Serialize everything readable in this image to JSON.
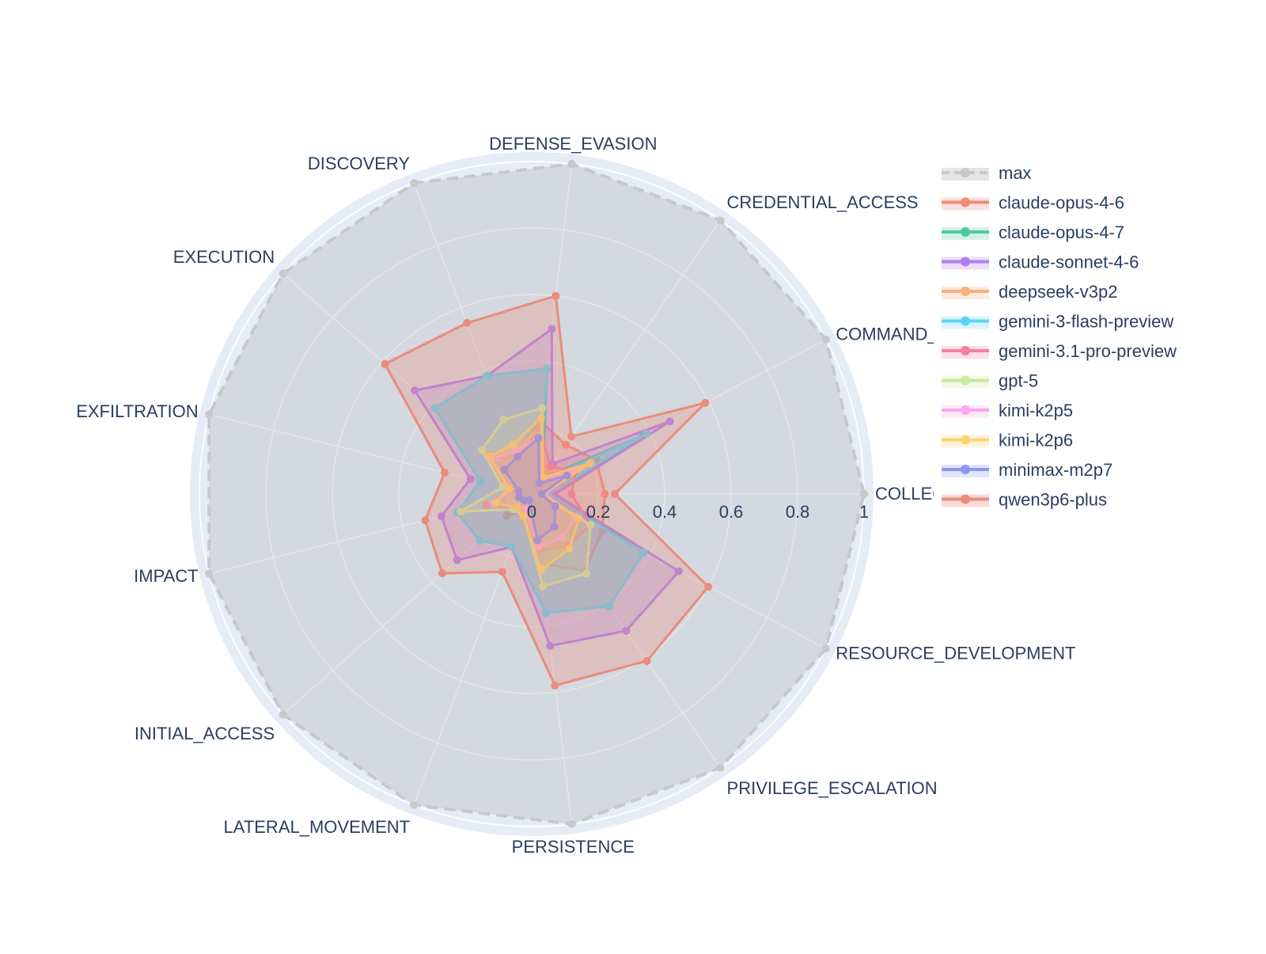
{
  "chart_data": {
    "type": "radar",
    "title": "",
    "range": [
      0,
      1
    ],
    "radial_ticks": [
      "0",
      "0.2",
      "0.4",
      "0.6",
      "0.8",
      "1"
    ],
    "radial_tick_values": [
      0,
      0.2,
      0.4,
      0.6,
      0.8,
      1
    ],
    "categories": [
      "COLLECTION",
      "COMMAND_AND_CONTROL",
      "CREDENTIAL_ACCESS",
      "DEFENSE_EVASION",
      "DISCOVERY",
      "EXECUTION",
      "EXFILTRATION",
      "IMPACT",
      "INITIAL_ACCESS",
      "LATERAL_MOVEMENT",
      "PERSISTENCE",
      "PRIVILEGE_ESCALATION",
      "RESOURCE_DEVELOPMENT"
    ],
    "category_labels": [
      "COLLECT",
      "COMMAND_A",
      "CREDENTIAL_ACCESS",
      "DEFENSE_EVASION",
      "DISCOVERY",
      "EXECUTION",
      "EXFILTRATION",
      "IMPACT",
      "INITIAL_ACCESS",
      "LATERAL_MOVEMENT",
      "PERSISTENCE",
      "PRIVILEGE_ESCALATION",
      "RESOURCE_DEVELOPMENT"
    ],
    "legend_position": "right",
    "series": [
      {
        "name": "max",
        "color": "#c8c8c8",
        "fill": "rgba(180,180,180,0.35)",
        "dash": true,
        "values": [
          1,
          1,
          1,
          1,
          1,
          1,
          1,
          1,
          1,
          1,
          1,
          1,
          1
        ]
      },
      {
        "name": "claude-opus-4-6",
        "color": "#ef8a78",
        "fill": "rgba(239,138,120,0.25)",
        "values": [
          0.22,
          0.22,
          0.18,
          0.22,
          0.14,
          0.13,
          0.06,
          0.08,
          0.1,
          0.05,
          0.21,
          0.28,
          0.24
        ]
      },
      {
        "name": "claude-opus-4-7",
        "color": "#4fc9a2",
        "fill": "rgba(79,201,162,0.25)",
        "values": [
          0.07,
          0.38,
          0.06,
          0.38,
          0.38,
          0.39,
          0.16,
          0.23,
          0.21,
          0.17,
          0.36,
          0.41,
          0.38
        ]
      },
      {
        "name": "claude-sonnet-4-6",
        "color": "#b17ef0",
        "fill": "rgba(177,126,240,0.25)",
        "values": [
          0.07,
          0.47,
          0.11,
          0.5,
          0.38,
          0.47,
          0.19,
          0.28,
          0.3,
          0.17,
          0.46,
          0.5,
          0.5
        ]
      },
      {
        "name": "deepseek-v3p2",
        "color": "#f9b07d",
        "fill": "rgba(249,176,125,0.25)",
        "values": [
          0.05,
          0.18,
          0.08,
          0.2,
          0.14,
          0.18,
          0.08,
          0.07,
          0.05,
          0.08,
          0.22,
          0.18,
          0.14
        ]
      },
      {
        "name": "gemini-3-flash-preview",
        "color": "#5ed3f3",
        "fill": "rgba(94,211,243,0.25)",
        "values": [
          0.05,
          0.39,
          0.04,
          0.38,
          0.38,
          0.39,
          0.16,
          0.23,
          0.21,
          0.17,
          0.36,
          0.41,
          0.38
        ]
      },
      {
        "name": "gemini-3.1-pro-preview",
        "color": "#f47f9e",
        "fill": "rgba(244,127,158,0.25)",
        "values": [
          0.12,
          0.15,
          0.1,
          0.2,
          0.12,
          0.16,
          0.06,
          0.14,
          0.06,
          0.05,
          0.17,
          0.19,
          0.2
        ]
      },
      {
        "name": "gpt-5",
        "color": "#c9eaa0",
        "fill": "rgba(201,234,160,0.25)",
        "values": [
          0.03,
          0.2,
          0.06,
          0.26,
          0.24,
          0.2,
          0.09,
          0.22,
          0.07,
          0.07,
          0.28,
          0.29,
          0.2
        ]
      },
      {
        "name": "kimi-k2p5",
        "color": "#f8a8ec",
        "fill": "rgba(248,168,236,0.25)",
        "values": [
          0.04,
          0.16,
          0.05,
          0.17,
          0.14,
          0.16,
          0.07,
          0.12,
          0.06,
          0.05,
          0.16,
          0.16,
          0.15
        ]
      },
      {
        "name": "kimi-k2p6",
        "color": "#fbd56f",
        "fill": "rgba(251,213,111,0.25)",
        "values": [
          0.03,
          0.2,
          0.06,
          0.23,
          0.16,
          0.17,
          0.07,
          0.11,
          0.06,
          0.07,
          0.23,
          0.2,
          0.16
        ]
      },
      {
        "name": "minimax-m2p7",
        "color": "#8c95f2",
        "fill": "rgba(140,149,242,0.25)",
        "values": [
          0.03,
          0.12,
          0.04,
          0.17,
          0.12,
          0.11,
          0.04,
          0.04,
          0.03,
          0.02,
          0.14,
          0.12,
          0.08
        ]
      },
      {
        "name": "qwen3p6-plus",
        "color": "#ea8c7c",
        "fill": "rgba(234,140,124,0.30)",
        "values": [
          0.25,
          0.59,
          0.21,
          0.6,
          0.55,
          0.59,
          0.27,
          0.33,
          0.36,
          0.25,
          0.58,
          0.61,
          0.6
        ]
      }
    ]
  }
}
